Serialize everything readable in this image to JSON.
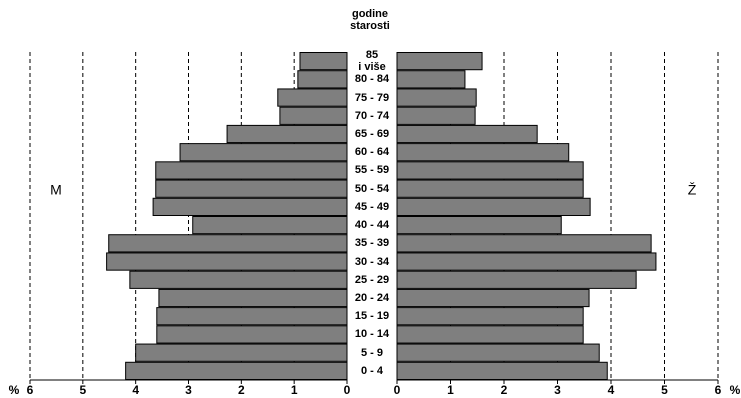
{
  "chart_data": {
    "type": "pyramid",
    "title": "godine\nstarosti",
    "x_label": "%",
    "categories": [
      "85\ni više",
      "80 - 84",
      "75 - 79",
      "70 - 74",
      "65 - 69",
      "60 - 64",
      "55 - 59",
      "50 - 54",
      "45 - 49",
      "40 - 44",
      "35 - 39",
      "30 - 34",
      "25 - 29",
      "20 - 24",
      "15 - 19",
      "10 - 14",
      "5 - 9",
      "0 - 4"
    ],
    "series": [
      {
        "name": "M",
        "color": "#7f7f7f",
        "values": [
          0.89,
          0.93,
          1.31,
          1.27,
          2.27,
          3.16,
          3.62,
          3.62,
          3.67,
          2.92,
          4.51,
          4.55,
          4.11,
          3.56,
          3.6,
          3.6,
          4.0,
          4.19
        ]
      },
      {
        "name": "Ž",
        "color": "#7f7f7f",
        "values": [
          1.59,
          1.27,
          1.48,
          1.46,
          2.62,
          3.21,
          3.48,
          3.48,
          3.61,
          3.07,
          4.75,
          4.84,
          4.47,
          3.59,
          3.48,
          3.48,
          3.78,
          3.93
        ]
      }
    ],
    "xlim": [
      0,
      6
    ],
    "xticks": [
      0,
      1,
      2,
      3,
      4,
      5,
      6
    ],
    "grid": true
  }
}
